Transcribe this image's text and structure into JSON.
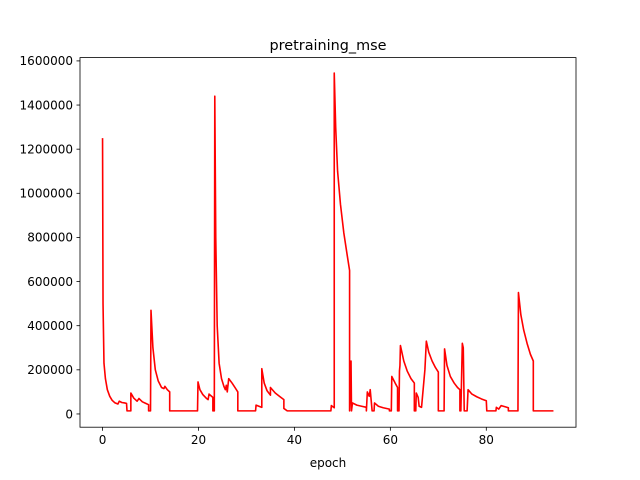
{
  "chart_data": {
    "type": "line",
    "title": "pretraining_mse",
    "xlabel": "epoch",
    "ylabel": "",
    "xlim": [
      -4.7,
      98.7
    ],
    "ylim": [
      -60000,
      1615000
    ],
    "xticks": [
      0,
      20,
      40,
      60,
      80
    ],
    "yticks": [
      0,
      200000,
      400000,
      600000,
      800000,
      1000000,
      1200000,
      1400000,
      1600000
    ],
    "xtick_labels": [
      "0",
      "20",
      "40",
      "60",
      "80"
    ],
    "ytick_labels": [
      "0",
      "200000",
      "400000",
      "600000",
      "800000",
      "1000000",
      "1200000",
      "1400000",
      "1600000"
    ],
    "grid": false,
    "series": [
      {
        "color": "#ff0000",
        "points": [
          [
            0,
            1250000
          ],
          [
            0.1,
            500000
          ],
          [
            0.3,
            230000
          ],
          [
            0.6,
            160000
          ],
          [
            1.0,
            110000
          ],
          [
            1.5,
            80000
          ],
          [
            2.0,
            62000
          ],
          [
            2.6,
            50000
          ],
          [
            3.2,
            45000
          ],
          [
            3.5,
            58000
          ],
          [
            4.0,
            52000
          ],
          [
            4.6,
            50000
          ],
          [
            5.0,
            48000
          ],
          [
            5.1,
            14000
          ],
          [
            5.9,
            14000
          ],
          [
            5.9,
            95000
          ],
          [
            6.5,
            72000
          ],
          [
            7.2,
            58000
          ],
          [
            7.6,
            70000
          ],
          [
            8.3,
            55000
          ],
          [
            9.0,
            48000
          ],
          [
            9.6,
            42000
          ],
          [
            9.6,
            14000
          ],
          [
            10.0,
            14000
          ],
          [
            10.1,
            470000
          ],
          [
            10.5,
            300000
          ],
          [
            11.0,
            200000
          ],
          [
            11.6,
            150000
          ],
          [
            12.3,
            120000
          ],
          [
            12.8,
            115000
          ],
          [
            13.0,
            125000
          ],
          [
            13.5,
            110000
          ],
          [
            14.0,
            100000
          ],
          [
            14.0,
            14000
          ],
          [
            19.8,
            14000
          ],
          [
            19.9,
            145000
          ],
          [
            20.3,
            110000
          ],
          [
            20.9,
            88000
          ],
          [
            21.6,
            72000
          ],
          [
            22.0,
            65000
          ],
          [
            22.2,
            90000
          ],
          [
            23.0,
            75000
          ],
          [
            23.0,
            14000
          ],
          [
            23.3,
            14000
          ],
          [
            23.4,
            1440000
          ],
          [
            23.6,
            800000
          ],
          [
            23.9,
            400000
          ],
          [
            24.3,
            230000
          ],
          [
            24.8,
            160000
          ],
          [
            25.3,
            125000
          ],
          [
            25.6,
            110000
          ],
          [
            25.8,
            130000
          ],
          [
            26.0,
            100000
          ],
          [
            26.3,
            160000
          ],
          [
            27.0,
            140000
          ],
          [
            27.6,
            120000
          ],
          [
            28.2,
            100000
          ],
          [
            28.2,
            14000
          ],
          [
            31.9,
            14000
          ],
          [
            32.0,
            40000
          ],
          [
            33.2,
            30000
          ],
          [
            33.2,
            205000
          ],
          [
            33.7,
            140000
          ],
          [
            34.3,
            105000
          ],
          [
            35.0,
            85000
          ],
          [
            35.0,
            120000
          ],
          [
            36.0,
            95000
          ],
          [
            37.0,
            78000
          ],
          [
            37.8,
            65000
          ],
          [
            37.8,
            25000
          ],
          [
            38.5,
            14000
          ],
          [
            47.6,
            14000
          ],
          [
            47.7,
            38000
          ],
          [
            48.3,
            28000
          ],
          [
            48.3,
            1545000
          ],
          [
            48.6,
            1300000
          ],
          [
            49.0,
            1100000
          ],
          [
            49.6,
            950000
          ],
          [
            50.3,
            820000
          ],
          [
            51.0,
            720000
          ],
          [
            51.5,
            650000
          ],
          [
            51.5,
            14000
          ],
          [
            51.8,
            240000
          ],
          [
            51.9,
            14000
          ],
          [
            52.1,
            50000
          ],
          [
            53.0,
            40000
          ],
          [
            54.0,
            35000
          ],
          [
            55.0,
            30000
          ],
          [
            55.0,
            14000
          ],
          [
            55.2,
            100000
          ],
          [
            55.6,
            80000
          ],
          [
            55.8,
            110000
          ],
          [
            56.2,
            14000
          ],
          [
            56.6,
            14000
          ],
          [
            56.7,
            50000
          ],
          [
            57.5,
            35000
          ],
          [
            58.5,
            28000
          ],
          [
            59.8,
            22000
          ],
          [
            59.8,
            14000
          ],
          [
            60.2,
            14000
          ],
          [
            60.3,
            170000
          ],
          [
            61.0,
            140000
          ],
          [
            61.5,
            120000
          ],
          [
            61.5,
            14000
          ],
          [
            61.8,
            14000
          ],
          [
            61.9,
            195000
          ],
          [
            62.0,
            220000
          ],
          [
            62.1,
            310000
          ],
          [
            62.8,
            240000
          ],
          [
            63.5,
            195000
          ],
          [
            64.3,
            160000
          ],
          [
            65.0,
            140000
          ],
          [
            65.0,
            14000
          ],
          [
            65.3,
            14000
          ],
          [
            65.4,
            95000
          ],
          [
            65.8,
            75000
          ],
          [
            66.0,
            35000
          ],
          [
            66.5,
            30000
          ],
          [
            67.2,
            200000
          ],
          [
            67.5,
            330000
          ],
          [
            68.0,
            280000
          ],
          [
            68.7,
            240000
          ],
          [
            69.4,
            210000
          ],
          [
            70.0,
            190000
          ],
          [
            70.0,
            14000
          ],
          [
            71.2,
            14000
          ],
          [
            71.3,
            295000
          ],
          [
            71.8,
            220000
          ],
          [
            72.5,
            170000
          ],
          [
            73.3,
            140000
          ],
          [
            74.0,
            120000
          ],
          [
            74.5,
            110000
          ],
          [
            74.5,
            14000
          ],
          [
            74.7,
            14000
          ],
          [
            75.0,
            320000
          ],
          [
            75.2,
            300000
          ],
          [
            75.4,
            14000
          ],
          [
            76.0,
            14000
          ],
          [
            76.2,
            110000
          ],
          [
            77.0,
            90000
          ],
          [
            78.0,
            78000
          ],
          [
            79.0,
            68000
          ],
          [
            80.0,
            60000
          ],
          [
            80.1,
            14000
          ],
          [
            82.0,
            14000
          ],
          [
            82.1,
            30000
          ],
          [
            82.6,
            22000
          ],
          [
            83.1,
            38000
          ],
          [
            84.0,
            32000
          ],
          [
            84.6,
            28000
          ],
          [
            84.6,
            14000
          ],
          [
            86.6,
            14000
          ],
          [
            86.7,
            550000
          ],
          [
            87.2,
            450000
          ],
          [
            87.8,
            380000
          ],
          [
            88.5,
            320000
          ],
          [
            89.2,
            270000
          ],
          [
            89.8,
            240000
          ],
          [
            89.8,
            14000
          ],
          [
            94.0,
            14000
          ]
        ]
      }
    ]
  }
}
